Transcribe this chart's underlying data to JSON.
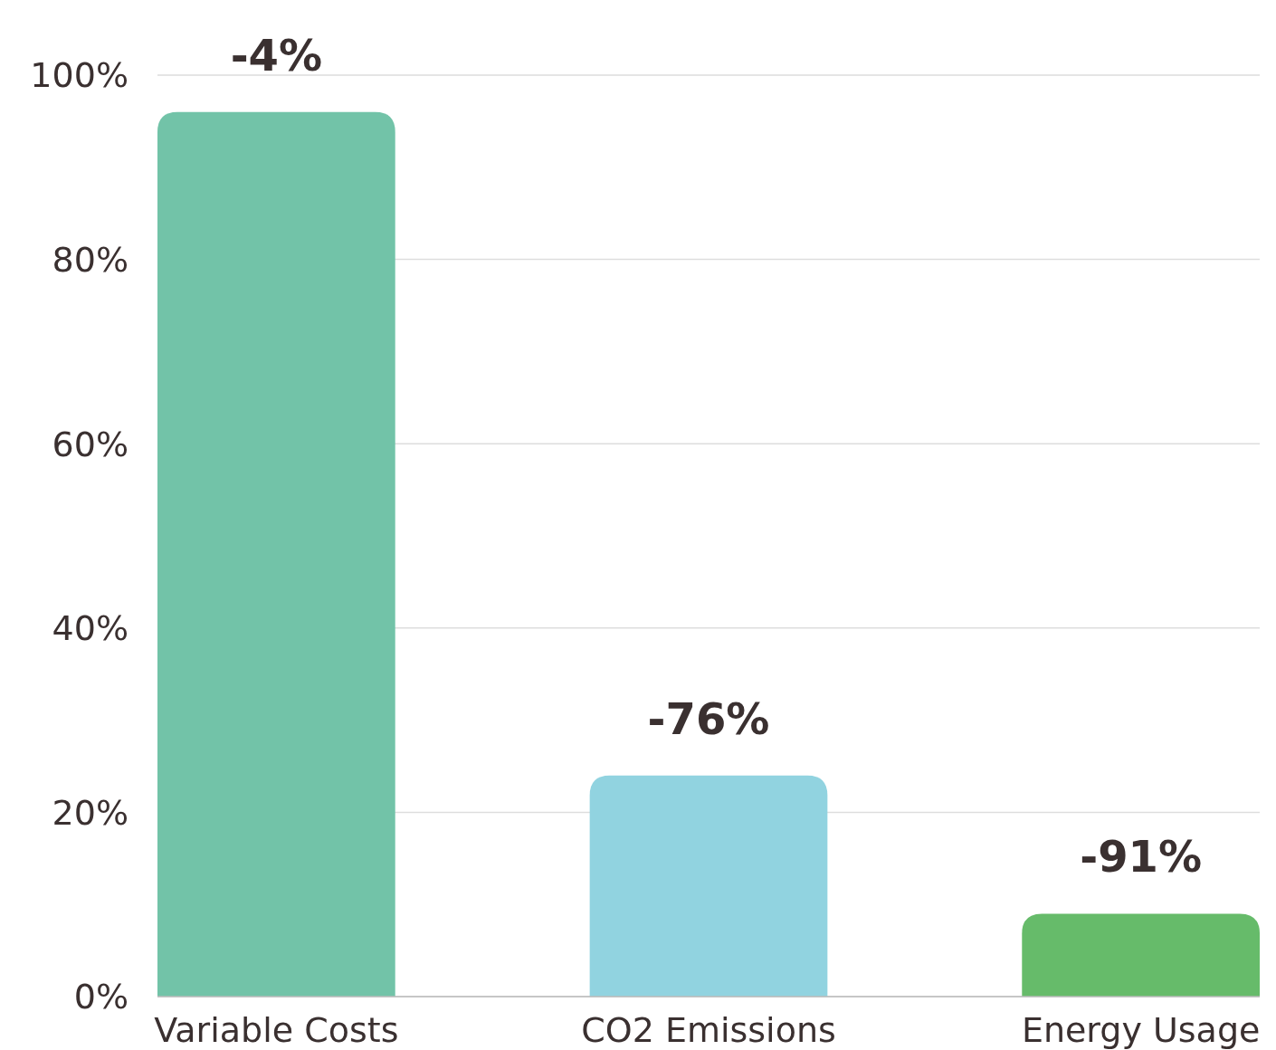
{
  "chart_data": {
    "type": "bar",
    "categories": [
      "Variable Costs",
      "CO2 Emissions",
      "Energy Usage"
    ],
    "values": [
      96,
      24,
      9
    ],
    "colors": [
      "#72c3a8",
      "#91d3e0",
      "#66bb6a"
    ],
    "annotations": [
      {
        "text": "-4%",
        "x": "Variable Costs",
        "y": 96
      },
      {
        "text": "-76%",
        "x": "CO2 Emissions",
        "y": 24
      },
      {
        "text": "-91%",
        "x": "Energy Usage",
        "y": 9
      }
    ],
    "ylim": [
      0,
      100
    ],
    "yticks": [
      {
        "value": 0,
        "label": "0%"
      },
      {
        "value": 20,
        "label": "20%"
      },
      {
        "value": 40,
        "label": "40%"
      },
      {
        "value": 60,
        "label": "60%"
      },
      {
        "value": 80,
        "label": "80%"
      },
      {
        "value": 100,
        "label": "100%"
      }
    ],
    "grid": "y"
  }
}
